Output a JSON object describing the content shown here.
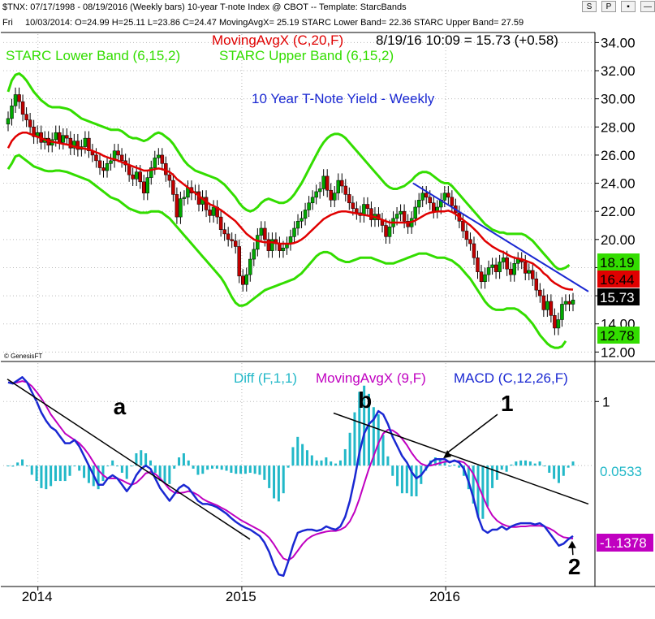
{
  "header": {
    "line1": "$TNX: 07/17/1998 - 08/19/2016 (Weekly bars)  10-year T-note Index @ CBOT  --  Template: StarcBands",
    "day": "Fri",
    "line2": "10/03/2014:  O=24.99  H=25.11  L=23.86  C=24.47  MovingAvgX= 25.19  STARC Lower Band= 22.36  STARC Upper Band= 27.59",
    "buttons": [
      "S",
      "P",
      "▪",
      "—"
    ]
  },
  "colors": {
    "up_candle": "#00a800",
    "down_candle": "#c00000",
    "ma_price": "#e00000",
    "starc": "#33dd00",
    "trend_blue": "#1a28d2",
    "macd": "#1a28d2",
    "signal": "#c000c0",
    "hist": "#22b8c8",
    "black": "#000000",
    "title_blue": "#1a28d2"
  },
  "chart_data": [
    {
      "type": "line",
      "panel": "price",
      "title": "10 Year T-Note Yield - Weekly",
      "legend": {
        "moving_avg": "MovingAvgX (C,20,F)",
        "last_quote": "8/19/16 10:09 = 15.73 (+0.58)",
        "starc_lower": "STARC Lower Band (6,15,2)",
        "starc_upper": "STARC Upper Band (6,15,2)"
      },
      "y_ticks": [
        "34.00",
        "32.00",
        "30.00",
        "28.00",
        "26.00",
        "24.00",
        "22.00",
        "20.00",
        "18.00",
        "16.00",
        "14.00",
        "12.00"
      ],
      "ylim": [
        11.5,
        34.6
      ],
      "x_labels": [
        "2014",
        "2015",
        "2016"
      ],
      "x_label_dates": [
        2014.0,
        2015.0,
        2016.0
      ],
      "xlim": [
        2013.83,
        2016.72
      ],
      "price_labels": [
        {
          "text": "18.19",
          "value": 18.19,
          "kind": "starc_upper"
        },
        {
          "text": "16.44",
          "value": 16.44,
          "kind": "ma"
        },
        {
          "text": "15.73",
          "value": 15.73,
          "kind": "last"
        },
        {
          "text": "12.78",
          "value": 12.78,
          "kind": "starc_lower"
        }
      ],
      "closes": [
        28.6,
        29.5,
        30.3,
        29.8,
        28.9,
        28.5,
        28.0,
        27.3,
        27.6,
        26.9,
        27.2,
        26.7,
        27.1,
        27.6,
        26.9,
        27.4,
        27.2,
        26.5,
        27.0,
        26.4,
        26.6,
        27.2,
        26.3,
        26.0,
        25.6,
        25.1,
        24.9,
        25.4,
        25.6,
        26.3,
        26.0,
        25.6,
        25.3,
        24.6,
        24.3,
        24.8,
        24.1,
        23.3,
        24.4,
        25.1,
        25.8,
        26.0,
        25.4,
        24.6,
        24.2,
        23.2,
        21.6,
        22.9,
        23.0,
        23.7,
        23.3,
        23.4,
        22.5,
        23.0,
        22.1,
        21.7,
        22.3,
        21.6,
        20.7,
        20.4,
        20.0,
        19.9,
        19.5,
        17.4,
        16.8,
        17.5,
        18.6,
        19.3,
        20.3,
        20.8,
        20.0,
        19.2,
        20.0,
        19.7,
        19.2,
        19.4,
        19.7,
        20.2,
        20.8,
        21.3,
        21.5,
        22.1,
        22.6,
        23.0,
        23.4,
        23.6,
        24.5,
        23.5,
        22.8,
        23.3,
        24.2,
        23.8,
        23.2,
        22.6,
        22.2,
        21.9,
        21.7,
        22.5,
        22.2,
        21.4,
        21.8,
        21.4,
        21.0,
        20.2,
        20.9,
        21.5,
        21.8,
        22.0,
        21.3,
        20.9,
        21.5,
        22.3,
        22.8,
        23.3,
        23.0,
        22.6,
        22.0,
        22.3,
        22.8,
        23.3,
        23.0,
        22.4,
        21.9,
        21.3,
        20.6,
        20.0,
        19.7,
        18.7,
        17.7,
        17.0,
        17.5,
        18.0,
        18.2,
        17.7,
        18.4,
        18.7,
        17.9,
        17.5,
        18.3,
        18.6,
        18.4,
        17.6,
        17.8,
        17.2,
        16.4,
        16.0,
        15.0,
        15.6,
        14.6,
        13.7,
        14.3,
        15.4,
        15.6,
        15.4,
        15.7
      ],
      "moving_avg": [
        26.5,
        27.0,
        27.3,
        27.5,
        27.6,
        27.6,
        27.5,
        27.4,
        27.3,
        27.2,
        27.1,
        27.0,
        26.95,
        26.9,
        26.85,
        26.8,
        26.75,
        26.7,
        26.6,
        26.55,
        26.5,
        26.45,
        26.4,
        26.3,
        26.2,
        26.1,
        25.95,
        25.85,
        25.75,
        25.7,
        25.6,
        25.5,
        25.4,
        25.3,
        25.2,
        25.1,
        25.0,
        24.9,
        24.9,
        24.95,
        25.0,
        25.05,
        25.0,
        24.9,
        24.8,
        24.6,
        24.3,
        24.1,
        23.9,
        23.7,
        23.5,
        23.3,
        23.1,
        22.9,
        22.7,
        22.5,
        22.4,
        22.25,
        22.1,
        21.9,
        21.7,
        21.5,
        21.3,
        21.0,
        20.7,
        20.4,
        20.2,
        20.0,
        19.9,
        19.85,
        19.8,
        19.8,
        19.8,
        19.75,
        19.7,
        19.7,
        19.7,
        19.7,
        19.75,
        19.85,
        20.0,
        20.2,
        20.45,
        20.7,
        20.95,
        21.2,
        21.45,
        21.6,
        21.75,
        21.85,
        21.95,
        22.0,
        22.0,
        21.95,
        21.9,
        21.85,
        21.8,
        21.75,
        21.7,
        21.65,
        21.6,
        21.5,
        21.4,
        21.3,
        21.2,
        21.2,
        21.2,
        21.2,
        21.2,
        21.2,
        21.25,
        21.35,
        21.5,
        21.65,
        21.8,
        21.9,
        21.95,
        22.0,
        22.0,
        22.0,
        22.05,
        21.95,
        21.8,
        21.6,
        21.4,
        21.2,
        21.0,
        20.75,
        20.5,
        20.2,
        19.9,
        19.7,
        19.5,
        19.35,
        19.2,
        19.1,
        18.95,
        18.8,
        18.7,
        18.65,
        18.6,
        18.5,
        18.4,
        18.3,
        18.1,
        17.9,
        17.6,
        17.4,
        17.1,
        16.9,
        16.75,
        16.6,
        16.5,
        16.45,
        16.44
      ],
      "starc_upper": [
        30.5,
        31.3,
        31.7,
        31.8,
        31.6,
        31.3,
        30.9,
        30.5,
        30.2,
        29.9,
        29.7,
        29.5,
        29.4,
        29.4,
        29.4,
        29.35,
        29.3,
        29.2,
        29.0,
        28.8,
        28.6,
        28.5,
        28.4,
        28.3,
        28.2,
        28.1,
        28.0,
        27.9,
        27.8,
        27.8,
        27.8,
        27.7,
        27.5,
        27.3,
        27.2,
        27.2,
        27.1,
        27.0,
        27.1,
        27.3,
        27.5,
        27.6,
        27.5,
        27.3,
        27.1,
        26.8,
        26.4,
        26.0,
        25.6,
        25.3,
        25.1,
        24.9,
        24.8,
        24.7,
        24.6,
        24.5,
        24.4,
        24.3,
        24.1,
        23.9,
        23.6,
        23.3,
        23.0,
        22.6,
        22.3,
        22.1,
        22.0,
        22.1,
        22.3,
        22.6,
        22.8,
        22.9,
        22.8,
        22.7,
        22.6,
        22.6,
        22.7,
        22.9,
        23.2,
        23.6,
        24.0,
        24.5,
        25.0,
        25.5,
        26.0,
        26.5,
        26.9,
        27.2,
        27.4,
        27.5,
        27.5,
        27.4,
        27.2,
        26.9,
        26.6,
        26.3,
        26.0,
        25.7,
        25.4,
        25.1,
        24.8,
        24.5,
        24.2,
        23.9,
        23.7,
        23.6,
        23.6,
        23.7,
        23.8,
        24.0,
        24.2,
        24.5,
        24.7,
        24.8,
        24.8,
        24.7,
        24.5,
        24.3,
        24.1,
        24.0,
        24.0,
        23.8,
        23.5,
        23.2,
        22.9,
        22.6,
        22.3,
        22.0,
        21.7,
        21.4,
        21.1,
        20.9,
        20.7,
        20.6,
        20.5,
        20.5,
        20.4,
        20.4,
        20.4,
        20.4,
        20.4,
        20.3,
        20.1,
        19.9,
        19.6,
        19.3,
        19.0,
        18.7,
        18.4,
        18.1,
        17.9,
        17.9,
        18.0,
        18.19
      ],
      "starc_lower": [
        25.0,
        25.4,
        25.9,
        26.0,
        25.8,
        25.6,
        25.4,
        25.2,
        25.1,
        25.0,
        24.9,
        24.85,
        24.85,
        24.9,
        24.9,
        24.85,
        24.8,
        24.7,
        24.6,
        24.5,
        24.4,
        24.3,
        24.2,
        24.0,
        23.8,
        23.6,
        23.4,
        23.2,
        23.0,
        22.9,
        22.8,
        22.6,
        22.4,
        22.2,
        22.1,
        22.0,
        21.9,
        21.9,
        21.9,
        22.0,
        22.0,
        22.0,
        21.9,
        21.7,
        21.5,
        21.2,
        20.9,
        20.6,
        20.3,
        20.0,
        19.7,
        19.4,
        19.1,
        18.8,
        18.5,
        18.2,
        17.9,
        17.6,
        17.3,
        16.9,
        16.4,
        15.9,
        15.5,
        15.3,
        15.3,
        15.4,
        15.6,
        15.8,
        16.0,
        16.2,
        16.4,
        16.5,
        16.6,
        16.7,
        16.8,
        16.9,
        17.0,
        17.1,
        17.2,
        17.4,
        17.6,
        17.9,
        18.2,
        18.5,
        18.8,
        19.0,
        19.1,
        19.1,
        19.0,
        18.8,
        18.6,
        18.5,
        18.4,
        18.4,
        18.5,
        18.6,
        18.7,
        18.7,
        18.7,
        18.7,
        18.6,
        18.5,
        18.4,
        18.3,
        18.3,
        18.3,
        18.4,
        18.5,
        18.6,
        18.7,
        18.8,
        18.9,
        19.0,
        19.0,
        19.0,
        18.9,
        18.8,
        18.7,
        18.7,
        18.7,
        18.6,
        18.5,
        18.3,
        18.1,
        17.8,
        17.5,
        17.2,
        16.8,
        16.4,
        16.0,
        15.6,
        15.3,
        15.1,
        15.0,
        15.0,
        15.0,
        15.1,
        15.1,
        15.1,
        15.0,
        14.8,
        14.6,
        14.3,
        14.0,
        13.6,
        13.2,
        12.9,
        12.6,
        12.4,
        12.3,
        12.3,
        12.4,
        12.78
      ],
      "trendline": {
        "x1": 2015.84,
        "y1": 24.0,
        "x2": 2016.7,
        "y2": 16.3
      },
      "last_value": 15.73
    },
    {
      "type": "line",
      "panel": "macd",
      "legend": {
        "diff": "Diff (F,1,1)",
        "moving_avg": "MovingAvgX (9,F)",
        "macd": "MACD (C,12,26,F)"
      },
      "y_ticks": [
        "1"
      ],
      "ylim": [
        -1.85,
        1.6
      ],
      "xlim": [
        2013.83,
        2016.72
      ],
      "value_labels": [
        {
          "text": "0.0533",
          "value": 0.0533,
          "kind": "hist"
        },
        {
          "text": "-1.1378",
          "value": -1.1378,
          "kind": "macd"
        }
      ],
      "macd": [
        1.3,
        1.28,
        1.33,
        1.38,
        1.3,
        1.15,
        1.0,
        0.83,
        0.7,
        0.6,
        0.55,
        0.45,
        0.35,
        0.35,
        0.4,
        0.3,
        0.15,
        0.0,
        -0.15,
        -0.3,
        -0.3,
        -0.2,
        -0.15,
        -0.2,
        -0.3,
        -0.4,
        -0.3,
        -0.15,
        -0.05,
        0.0,
        -0.05,
        -0.2,
        -0.35,
        -0.45,
        -0.55,
        -0.45,
        -0.35,
        -0.3,
        -0.35,
        -0.45,
        -0.55,
        -0.6,
        -0.6,
        -0.62,
        -0.65,
        -0.7,
        -0.75,
        -0.82,
        -0.88,
        -0.93,
        -0.97,
        -1.0,
        -1.05,
        -1.1,
        -1.2,
        -1.35,
        -1.55,
        -1.7,
        -1.72,
        -1.5,
        -1.25,
        -1.05,
        -1.02,
        -1.0,
        -1.0,
        -1.02,
        -1.0,
        -0.95,
        -0.98,
        -1.0,
        -0.95,
        -0.8,
        -0.55,
        -0.2,
        0.2,
        0.5,
        0.65,
        0.72,
        0.85,
        0.8,
        0.65,
        0.45,
        0.3,
        0.15,
        0.05,
        -0.1,
        -0.2,
        -0.15,
        -0.05,
        0.05,
        0.1,
        0.1,
        0.1,
        0.05,
        0.08,
        0.05,
        -0.05,
        -0.25,
        -0.5,
        -0.8,
        -1.0,
        -1.05,
        -1.0,
        -1.0,
        -0.95,
        -1.0,
        -0.95,
        -0.92,
        -0.9,
        -0.9,
        -0.9,
        -0.92,
        -0.9,
        -0.95,
        -1.05,
        -1.15,
        -1.25,
        -1.22,
        -1.15,
        -1.1
      ],
      "signal": [
        1.3,
        1.29,
        1.3,
        1.32,
        1.3,
        1.24,
        1.15,
        1.05,
        0.93,
        0.8,
        0.7,
        0.6,
        0.5,
        0.45,
        0.4,
        0.35,
        0.27,
        0.17,
        0.05,
        -0.07,
        -0.15,
        -0.2,
        -0.2,
        -0.2,
        -0.23,
        -0.27,
        -0.3,
        -0.27,
        -0.2,
        -0.12,
        -0.1,
        -0.13,
        -0.2,
        -0.28,
        -0.37,
        -0.42,
        -0.43,
        -0.42,
        -0.4,
        -0.42,
        -0.46,
        -0.52,
        -0.56,
        -0.59,
        -0.62,
        -0.66,
        -0.7,
        -0.75,
        -0.8,
        -0.85,
        -0.89,
        -0.93,
        -0.97,
        -1.01,
        -1.06,
        -1.13,
        -1.23,
        -1.35,
        -1.45,
        -1.48,
        -1.43,
        -1.33,
        -1.23,
        -1.15,
        -1.1,
        -1.07,
        -1.05,
        -1.03,
        -1.02,
        -1.02,
        -1.0,
        -0.96,
        -0.87,
        -0.72,
        -0.52,
        -0.28,
        -0.05,
        0.15,
        0.35,
        0.5,
        0.56,
        0.55,
        0.5,
        0.42,
        0.32,
        0.2,
        0.1,
        0.03,
        0.0,
        0.0,
        0.02,
        0.04,
        0.06,
        0.06,
        0.07,
        0.07,
        0.05,
        -0.02,
        -0.13,
        -0.3,
        -0.48,
        -0.65,
        -0.78,
        -0.86,
        -0.91,
        -0.94,
        -0.96,
        -0.96,
        -0.95,
        -0.95,
        -0.94,
        -0.94,
        -0.94,
        -0.95,
        -0.98,
        -1.02,
        -1.08,
        -1.12,
        -1.13,
        -1.14
      ],
      "trendlines": [
        {
          "name": "a",
          "x1": 2013.85,
          "y1": 1.35,
          "x2": 2015.04,
          "y2": -1.15
        },
        {
          "name": "b",
          "x1": 2015.45,
          "y1": 0.82,
          "x2": 2016.7,
          "y2": -0.6
        }
      ],
      "annotations": [
        {
          "text": "a",
          "x": 2014.37,
          "y": 0.8
        },
        {
          "text": "b",
          "x": 2015.57,
          "y": 0.9
        },
        {
          "text": "1",
          "x": 2016.27,
          "y": 0.85
        },
        {
          "text": "2",
          "x": 2016.6,
          "y": -1.7
        }
      ]
    }
  ],
  "watermark": "© GenesisFT"
}
